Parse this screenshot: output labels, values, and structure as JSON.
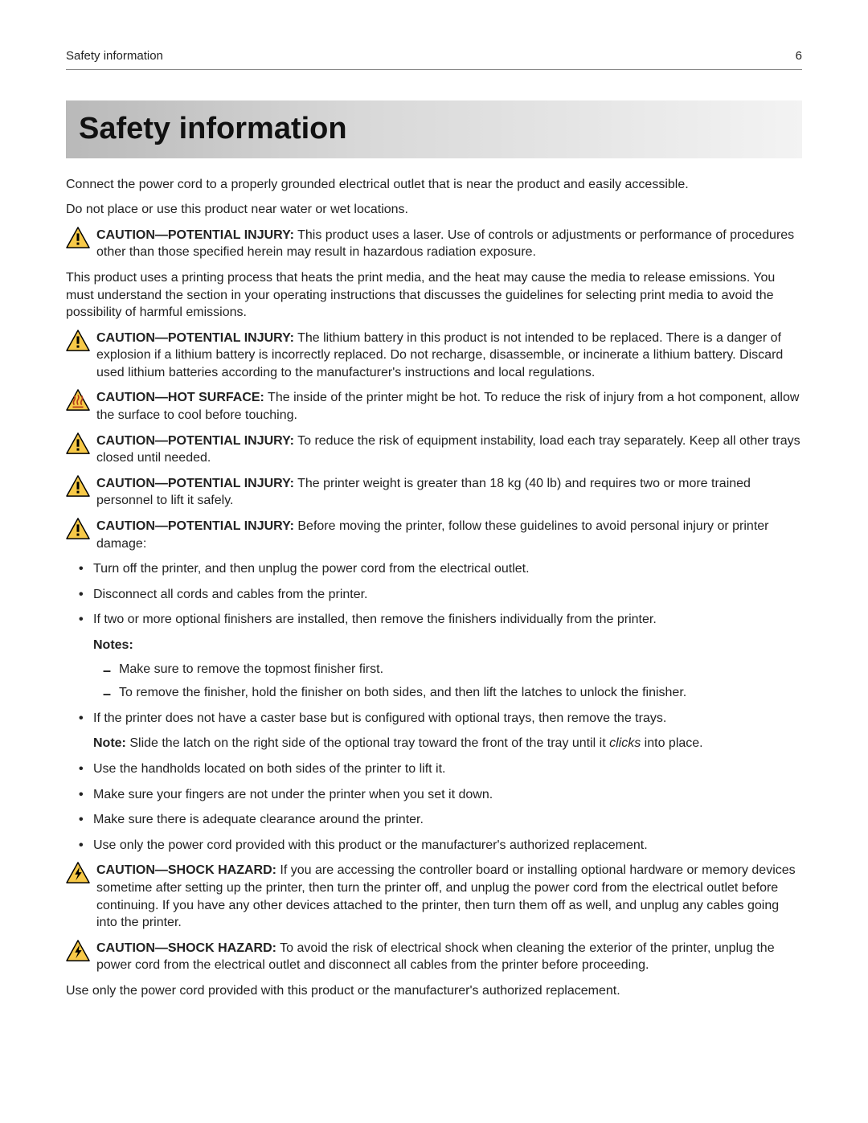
{
  "header": {
    "title": "Safety information",
    "page_number": "6"
  },
  "main_title": "Safety information",
  "intro_paragraphs": [
    "Connect the power cord to a properly grounded electrical outlet that is near the product and easily accessible.",
    "Do not place or use this product near water or wet locations."
  ],
  "cautions_top": [
    {
      "icon": "warning",
      "label": "CAUTION—POTENTIAL INJURY:",
      "text": " This product uses a laser. Use of controls or adjustments or performance of procedures other than those specified herein may result in hazardous radiation exposure."
    }
  ],
  "mid_paragraph": "This product uses a printing process that heats the print media, and the heat may cause the media to release emissions. You must understand the section in your operating instructions that discusses the guidelines for selecting print media to avoid the possibility of harmful emissions.",
  "cautions_mid": [
    {
      "icon": "warning",
      "label": "CAUTION—POTENTIAL INJURY:",
      "text": "  The lithium battery in this product is not intended to be replaced. There is a danger of explosion if a lithium battery is incorrectly replaced. Do not recharge, disassemble, or incinerate a lithium battery. Discard used lithium batteries according to the manufacturer's instructions and local regulations."
    },
    {
      "icon": "hot",
      "label": "CAUTION—HOT SURFACE:",
      "text": " The inside of the printer might be hot. To reduce the risk of injury from a hot component, allow the surface to cool before touching."
    },
    {
      "icon": "warning",
      "label": "CAUTION—POTENTIAL INJURY:",
      "text": " To reduce the risk of equipment instability, load each tray separately. Keep all other trays closed until needed."
    },
    {
      "icon": "warning",
      "label": "CAUTION—POTENTIAL INJURY:",
      "text": " The printer weight is greater than 18 kg (40 lb) and requires two or more trained personnel to lift it safely."
    },
    {
      "icon": "warning",
      "label": "CAUTION—POTENTIAL INJURY:",
      "text": " Before moving the printer, follow these guidelines to avoid personal injury or printer damage:"
    }
  ],
  "bullets_a": [
    "Turn off the printer, and then unplug the power cord from the electrical outlet.",
    "Disconnect all cords and cables from the printer.",
    "If two or more optional finishers are installed, then remove the finishers individually from the printer."
  ],
  "notes_label": "Notes:",
  "dashes": [
    "Make sure to remove the topmost finisher first.",
    "To remove the finisher, hold the finisher on both sides, and then lift the latches to unlock the finisher."
  ],
  "bullets_b_first": "If the printer does not have a caster base but is configured with optional trays, then remove the trays.",
  "sub_note": {
    "label": "Note:",
    "before": " Slide the latch on the right side of the optional tray toward the front of the tray until it ",
    "italic": "clicks",
    "after": " into place."
  },
  "bullets_c": [
    "Use the handholds located on both sides of the printer to lift it.",
    "Make sure your fingers are not under the printer when you set it down.",
    "Make sure there is adequate clearance around the printer.",
    "Use only the power cord provided with this product or the manufacturer's authorized replacement."
  ],
  "cautions_bottom": [
    {
      "icon": "shock",
      "label": "CAUTION—SHOCK HAZARD:",
      "text": " If you are accessing the controller board or installing optional hardware or memory devices sometime after setting up the printer, then turn the printer off, and unplug the power cord from the electrical outlet before continuing. If you have any other devices attached to the printer, then turn them off as well, and unplug any cables going into the printer."
    },
    {
      "icon": "shock",
      "label": "CAUTION—SHOCK HAZARD:",
      "text": " To avoid the risk of electrical shock when cleaning the exterior of the printer, unplug the power cord from the electrical outlet and disconnect all cables from the printer before proceeding."
    }
  ],
  "closing_paragraph": "Use only the power cord provided with this product or the manufacturer's authorized replacement.",
  "colors": {
    "triangle_fill": "#f7c948",
    "triangle_stroke": "#000000",
    "shock_glyph": "#000000",
    "hot_glyph": "#b33a1a"
  }
}
